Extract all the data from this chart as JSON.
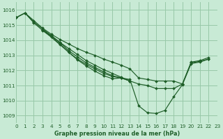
{
  "background_color": "#c8ead5",
  "grid_color": "#98c8a8",
  "line_color": "#1e5e28",
  "title": "Graphe pression niveau de la mer (hPa)",
  "figsize": [
    3.2,
    2.0
  ],
  "dpi": 100,
  "xlim": [
    0,
    23
  ],
  "ylim": [
    1008.5,
    1016.5
  ],
  "yticks": [
    1009,
    1010,
    1011,
    1012,
    1013,
    1014,
    1015,
    1016
  ],
  "xticks": [
    0,
    1,
    2,
    3,
    4,
    5,
    6,
    7,
    8,
    9,
    10,
    11,
    12,
    13,
    14,
    15,
    16,
    17,
    18,
    19,
    20,
    21,
    22,
    23
  ],
  "series": [
    {
      "x": [
        0,
        1,
        2,
        3,
        4,
        5,
        6,
        7,
        8,
        9,
        10,
        11,
        12,
        13,
        14,
        15,
        16,
        17,
        18,
        19,
        20,
        21,
        22
      ],
      "y": [
        1015.5,
        1015.8,
        1015.3,
        1014.8,
        1014.4,
        1014.05,
        1013.75,
        1013.45,
        1013.2,
        1013.0,
        1012.75,
        1012.55,
        1012.35,
        1012.1,
        1011.5,
        1011.4,
        1011.3,
        1011.3,
        1011.3,
        1011.1,
        1012.55,
        1012.65,
        1012.85
      ]
    },
    {
      "x": [
        0,
        1,
        2,
        3,
        4,
        5,
        6,
        7,
        8,
        9,
        10,
        11,
        12,
        13,
        14,
        15,
        16,
        17,
        18,
        19,
        20,
        21,
        22
      ],
      "y": [
        1015.5,
        1015.8,
        1015.2,
        1014.75,
        1014.3,
        1013.85,
        1013.45,
        1013.05,
        1012.65,
        1012.35,
        1012.05,
        1011.8,
        1011.55,
        1011.3,
        1011.1,
        1011.0,
        1010.8,
        1010.8,
        1010.8,
        1011.1,
        1012.5,
        1012.6,
        1012.75
      ]
    },
    {
      "x": [
        3,
        4,
        5,
        6,
        7,
        8,
        9,
        10,
        11,
        12,
        13
      ],
      "y": [
        1014.7,
        1014.3,
        1013.85,
        1013.3,
        1012.9,
        1012.5,
        1012.2,
        1011.9,
        1011.65,
        1011.5,
        1011.3
      ]
    },
    {
      "x": [
        3,
        4,
        5,
        6,
        7,
        8,
        9,
        10,
        11,
        12,
        13
      ],
      "y": [
        1014.65,
        1014.25,
        1013.75,
        1013.2,
        1012.75,
        1012.4,
        1012.1,
        1011.8,
        1011.6,
        1011.5,
        1011.3
      ]
    },
    {
      "x": [
        0,
        1,
        2,
        3,
        4,
        5,
        6,
        7,
        8,
        9,
        10,
        11,
        12,
        13,
        14,
        15,
        16,
        17,
        18,
        19,
        20,
        21,
        22
      ],
      "y": [
        1015.5,
        1015.8,
        1015.15,
        1014.65,
        1014.2,
        1013.7,
        1013.2,
        1012.7,
        1012.3,
        1011.95,
        1011.65,
        1011.45,
        1011.5,
        1011.4,
        1009.65,
        1009.2,
        1009.15,
        1009.35,
        1010.25,
        1011.05,
        1012.45,
        1012.55,
        1012.75
      ]
    }
  ]
}
